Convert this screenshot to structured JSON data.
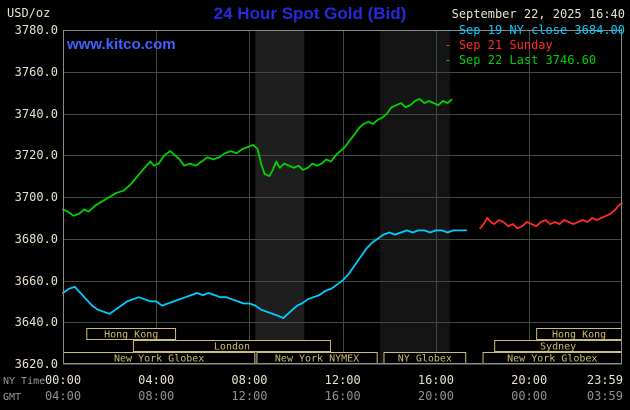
{
  "colors": {
    "background": "#000000",
    "title": "#2828dd",
    "link": "#4060ff",
    "axis_text": "#e8e2cc",
    "dim_text": "#909090",
    "row_title_text": "#9a9a9a",
    "grid": "#3d4b3d",
    "border": "#8a8a8a",
    "session": "#cdbc74"
  },
  "header": {
    "units": "USD/oz",
    "title": "24 Hour Spot Gold (Bid)",
    "datetime": "September 22, 2025 16:40",
    "watermark": "www.kitco.com"
  },
  "legend": [
    {
      "label": "- Sep 19 NY close 3684.00",
      "color": "#00ccff"
    },
    {
      "label": "- Sep 21 Sunday",
      "color": "#ff2a2a"
    },
    {
      "label": "- Sep 22 Last 3746.60",
      "color": "#00d200"
    }
  ],
  "axes": {
    "x_row1_title": "NY Time",
    "x_row2_title": "GMT",
    "x_tick_hours": [
      0,
      4,
      8,
      12,
      16,
      20,
      23.983
    ],
    "ny_time_labels": [
      "00:00",
      "04:00",
      "08:00",
      "12:00",
      "16:00",
      "20:00",
      "23:59"
    ],
    "gmt_labels": [
      "04:00",
      "08:00",
      "12:00",
      "16:00",
      "20:00",
      "00:00",
      "03:59"
    ],
    "y_tick_labels": [
      "3620.0",
      "3640.0",
      "3660.0",
      "3680.0",
      "3700.0",
      "3720.0",
      "3740.0",
      "3760.0",
      "3780.0"
    ]
  },
  "sessions": [
    {
      "row": 1,
      "start": 1.0,
      "end": 4.85,
      "label": "Hong Kong"
    },
    {
      "row": 1,
      "start": 20.3,
      "end": 23.983,
      "label": "Hong Kong"
    },
    {
      "row": 2,
      "start": 3.0,
      "end": 11.5,
      "label": "London"
    },
    {
      "row": 2,
      "start": 18.5,
      "end": 23.983,
      "label": "Sydney"
    },
    {
      "row": 3,
      "start": 0.0,
      "end": 8.25,
      "label": "New York Globex"
    },
    {
      "row": 3,
      "start": 8.3,
      "end": 13.5,
      "label": "New York NYMEX"
    },
    {
      "row": 3,
      "start": 13.75,
      "end": 17.3,
      "label": "NY Globex"
    },
    {
      "row": 3,
      "start": 18.0,
      "end": 23.983,
      "label": "New York Globex"
    }
  ],
  "chart_data": {
    "type": "line",
    "title": "24 Hour Spot Gold (Bid)",
    "xlabel": "NY Time (hours)",
    "ylabel": "USD/oz",
    "xlim": [
      0,
      23.983
    ],
    "ylim": [
      3620,
      3780
    ],
    "y_ticks": [
      3620,
      3640,
      3660,
      3680,
      3700,
      3720,
      3740,
      3760,
      3780
    ],
    "x_grid_hours": [
      4,
      8,
      12,
      16,
      20
    ],
    "grid": true,
    "legend_position": "top-right",
    "shaded_bands": [
      {
        "from": 8.25,
        "to": 10.35,
        "color": "#1e1e1e"
      },
      {
        "from": 13.6,
        "to": 16.6,
        "color": "#141414"
      }
    ],
    "series": [
      {
        "name": "Sep 19 NY close",
        "color": "#00ccff",
        "close": 3684.0,
        "points": [
          [
            0,
            3654
          ],
          [
            0.25,
            3656
          ],
          [
            0.5,
            3657
          ],
          [
            0.75,
            3654
          ],
          [
            1.0,
            3651
          ],
          [
            1.25,
            3648
          ],
          [
            1.5,
            3646
          ],
          [
            1.75,
            3645
          ],
          [
            2.0,
            3644
          ],
          [
            2.25,
            3646
          ],
          [
            2.5,
            3648
          ],
          [
            2.75,
            3650
          ],
          [
            3.0,
            3651
          ],
          [
            3.25,
            3652
          ],
          [
            3.5,
            3651
          ],
          [
            3.75,
            3650
          ],
          [
            4.0,
            3650
          ],
          [
            4.25,
            3648
          ],
          [
            4.5,
            3649
          ],
          [
            4.75,
            3650
          ],
          [
            5.0,
            3651
          ],
          [
            5.25,
            3652
          ],
          [
            5.5,
            3653
          ],
          [
            5.75,
            3654
          ],
          [
            6.0,
            3653
          ],
          [
            6.25,
            3654
          ],
          [
            6.5,
            3653
          ],
          [
            6.75,
            3652
          ],
          [
            7.0,
            3652
          ],
          [
            7.25,
            3651
          ],
          [
            7.5,
            3650
          ],
          [
            7.75,
            3649
          ],
          [
            8.0,
            3649
          ],
          [
            8.25,
            3648
          ],
          [
            8.5,
            3646
          ],
          [
            8.75,
            3645
          ],
          [
            9.0,
            3644
          ],
          [
            9.25,
            3643
          ],
          [
            9.45,
            3642
          ],
          [
            9.65,
            3644
          ],
          [
            9.85,
            3646
          ],
          [
            10.05,
            3648
          ],
          [
            10.25,
            3649
          ],
          [
            10.5,
            3651
          ],
          [
            10.75,
            3652
          ],
          [
            11.0,
            3653
          ],
          [
            11.25,
            3655
          ],
          [
            11.5,
            3656
          ],
          [
            11.75,
            3658
          ],
          [
            12.0,
            3660
          ],
          [
            12.25,
            3663
          ],
          [
            12.5,
            3667
          ],
          [
            12.75,
            3671
          ],
          [
            13.0,
            3675
          ],
          [
            13.25,
            3678
          ],
          [
            13.5,
            3680
          ],
          [
            13.75,
            3682
          ],
          [
            14.0,
            3683
          ],
          [
            14.25,
            3682
          ],
          [
            14.5,
            3683
          ],
          [
            14.75,
            3684
          ],
          [
            15.0,
            3683
          ],
          [
            15.25,
            3684
          ],
          [
            15.5,
            3684
          ],
          [
            15.75,
            3683
          ],
          [
            16.0,
            3684
          ],
          [
            16.25,
            3684
          ],
          [
            16.5,
            3683
          ],
          [
            16.75,
            3684
          ],
          [
            17.0,
            3684
          ],
          [
            17.3,
            3684
          ]
        ]
      },
      {
        "name": "Sep 21 Sunday",
        "color": "#ff2a2a",
        "points": [
          [
            17.9,
            3685
          ],
          [
            18.05,
            3687
          ],
          [
            18.2,
            3690
          ],
          [
            18.35,
            3688
          ],
          [
            18.5,
            3687
          ],
          [
            18.7,
            3689
          ],
          [
            18.9,
            3688
          ],
          [
            19.1,
            3686
          ],
          [
            19.3,
            3687
          ],
          [
            19.5,
            3685
          ],
          [
            19.7,
            3686
          ],
          [
            19.9,
            3688
          ],
          [
            20.1,
            3687
          ],
          [
            20.3,
            3686
          ],
          [
            20.5,
            3688
          ],
          [
            20.7,
            3689
          ],
          [
            20.9,
            3687
          ],
          [
            21.1,
            3688
          ],
          [
            21.3,
            3687
          ],
          [
            21.5,
            3689
          ],
          [
            21.7,
            3688
          ],
          [
            21.9,
            3687
          ],
          [
            22.1,
            3688
          ],
          [
            22.3,
            3689
          ],
          [
            22.5,
            3688
          ],
          [
            22.7,
            3690
          ],
          [
            22.9,
            3689
          ],
          [
            23.1,
            3690
          ],
          [
            23.3,
            3691
          ],
          [
            23.5,
            3692
          ],
          [
            23.7,
            3694
          ],
          [
            23.85,
            3696
          ],
          [
            23.98,
            3697
          ]
        ]
      },
      {
        "name": "Sep 22",
        "color": "#00d200",
        "last": 3746.6,
        "points": [
          [
            0,
            3694
          ],
          [
            0.2,
            3693
          ],
          [
            0.45,
            3691
          ],
          [
            0.7,
            3692
          ],
          [
            0.9,
            3694
          ],
          [
            1.1,
            3693
          ],
          [
            1.4,
            3696
          ],
          [
            1.7,
            3698
          ],
          [
            2.0,
            3700
          ],
          [
            2.3,
            3702
          ],
          [
            2.6,
            3703
          ],
          [
            2.9,
            3706
          ],
          [
            3.2,
            3710
          ],
          [
            3.5,
            3714
          ],
          [
            3.75,
            3717
          ],
          [
            3.9,
            3715
          ],
          [
            4.1,
            3716
          ],
          [
            4.35,
            3720
          ],
          [
            4.6,
            3722
          ],
          [
            4.8,
            3720
          ],
          [
            5.0,
            3718
          ],
          [
            5.2,
            3715
          ],
          [
            5.45,
            3716
          ],
          [
            5.7,
            3715
          ],
          [
            5.95,
            3717
          ],
          [
            6.2,
            3719
          ],
          [
            6.45,
            3718
          ],
          [
            6.7,
            3719
          ],
          [
            6.95,
            3721
          ],
          [
            7.2,
            3722
          ],
          [
            7.45,
            3721
          ],
          [
            7.7,
            3723
          ],
          [
            7.95,
            3724
          ],
          [
            8.15,
            3725
          ],
          [
            8.35,
            3723
          ],
          [
            8.5,
            3716
          ],
          [
            8.65,
            3711
          ],
          [
            8.85,
            3710
          ],
          [
            9.0,
            3713
          ],
          [
            9.15,
            3717
          ],
          [
            9.3,
            3714
          ],
          [
            9.5,
            3716
          ],
          [
            9.7,
            3715
          ],
          [
            9.9,
            3714
          ],
          [
            10.1,
            3715
          ],
          [
            10.3,
            3713
          ],
          [
            10.5,
            3714
          ],
          [
            10.7,
            3716
          ],
          [
            10.9,
            3715
          ],
          [
            11.1,
            3716
          ],
          [
            11.3,
            3718
          ],
          [
            11.5,
            3717
          ],
          [
            11.7,
            3720
          ],
          [
            11.9,
            3722
          ],
          [
            12.1,
            3724
          ],
          [
            12.3,
            3727
          ],
          [
            12.5,
            3730
          ],
          [
            12.7,
            3733
          ],
          [
            12.9,
            3735
          ],
          [
            13.1,
            3736
          ],
          [
            13.3,
            3735
          ],
          [
            13.5,
            3737
          ],
          [
            13.7,
            3738
          ],
          [
            13.9,
            3740
          ],
          [
            14.1,
            3743
          ],
          [
            14.3,
            3744
          ],
          [
            14.5,
            3745
          ],
          [
            14.7,
            3743
          ],
          [
            14.9,
            3744
          ],
          [
            15.1,
            3746
          ],
          [
            15.3,
            3747
          ],
          [
            15.5,
            3745
          ],
          [
            15.7,
            3746
          ],
          [
            15.9,
            3745
          ],
          [
            16.1,
            3744
          ],
          [
            16.3,
            3746
          ],
          [
            16.5,
            3745
          ],
          [
            16.67,
            3746.6
          ]
        ]
      }
    ]
  }
}
